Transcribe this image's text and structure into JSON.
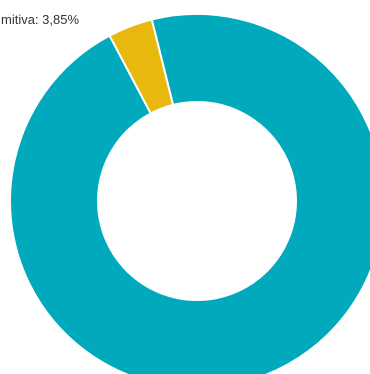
{
  "chart_data": {
    "type": "pie",
    "donut": true,
    "slices": [
      {
        "name": "",
        "value": 96.15,
        "color": "#00a9bb"
      },
      {
        "name": "mitiva",
        "value": 3.85,
        "color": "#e9b80f",
        "label": "mitiva: 3,85%"
      }
    ]
  }
}
